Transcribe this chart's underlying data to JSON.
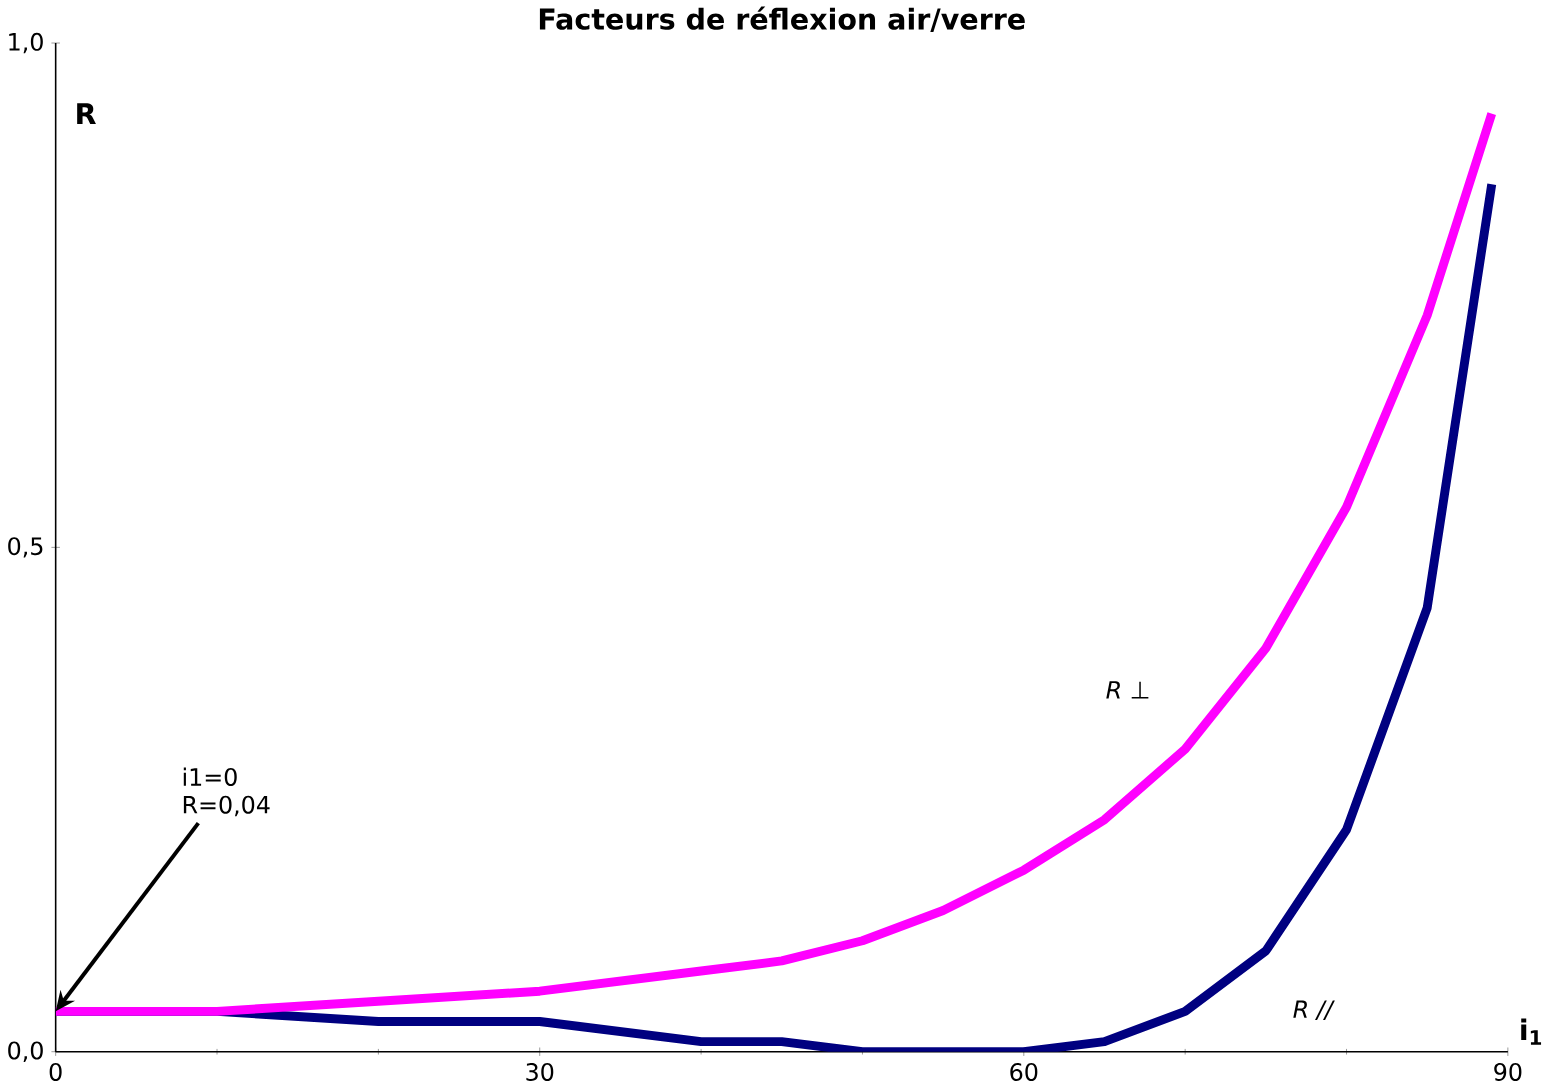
{
  "chart_data": {
    "type": "line",
    "title": "Facteurs de réflexion air/verre",
    "xlabel": "i$_{1}$",
    "ylabel": "R",
    "x": [
      0,
      10,
      20,
      30,
      40,
      45,
      50,
      55,
      60,
      65,
      70,
      75,
      80,
      85,
      89
    ],
    "series": [
      {
        "name": "R ⊥",
        "color": "#ff00ff",
        "values": [
          0.04,
          0.04,
          0.05,
          0.06,
          0.08,
          0.09,
          0.11,
          0.14,
          0.18,
          0.23,
          0.3,
          0.4,
          0.54,
          0.73,
          0.93
        ]
      },
      {
        "name": "R //",
        "color": "#000080",
        "values": [
          0.04,
          0.04,
          0.03,
          0.03,
          0.01,
          0.01,
          0.0,
          0.0,
          0.0,
          0.01,
          0.04,
          0.1,
          0.22,
          0.44,
          0.86
        ]
      }
    ],
    "xlim": [
      0,
      90
    ],
    "ylim": [
      0,
      1
    ],
    "xticks": [
      0,
      30,
      60,
      90
    ],
    "yticks": [
      {
        "value": 0,
        "label": "0,0"
      },
      {
        "value": 0.5,
        "label": "0,5"
      },
      {
        "value": 1,
        "label": "1,0"
      }
    ],
    "annotations": [
      {
        "text": "i1=0 R=0,04",
        "x": 0,
        "y": 0.04
      }
    ],
    "grid": false,
    "legend": false,
    "marker": "none",
    "line_style": "solid"
  }
}
